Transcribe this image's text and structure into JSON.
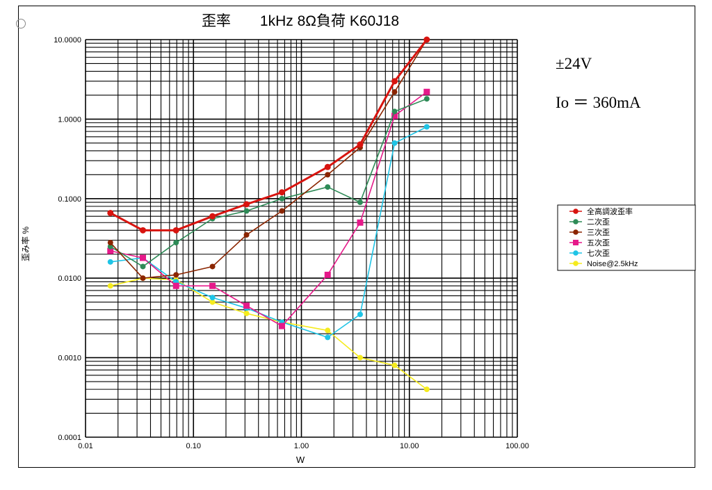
{
  "chart_data": {
    "type": "line",
    "title": "歪率　　1kHz 8Ω負荷  K60J18",
    "xlabel": "W",
    "ylabel": "歪み率 %",
    "xscale": "log",
    "yscale": "log",
    "xlim": [
      0.01,
      100
    ],
    "ylim": [
      0.0001,
      10
    ],
    "grid": true,
    "legend_position": "right",
    "xticks": [
      "0.01",
      "0.10",
      "1.00",
      "10.00",
      "100.00"
    ],
    "yticks": [
      "10.0000",
      "1.0000",
      "0.1000",
      "0.0100",
      "0.0010",
      "0.0001"
    ],
    "x": [
      0.017,
      0.034,
      0.069,
      0.15,
      0.31,
      0.66,
      1.75,
      3.5,
      7.3,
      14.5
    ],
    "series": [
      {
        "name": "全高調波歪率",
        "color": "#d8140f",
        "values": [
          0.066,
          0.04,
          0.04,
          0.06,
          0.085,
          0.12,
          0.25,
          0.48,
          3.0,
          10.0
        ]
      },
      {
        "name": "二次歪",
        "color": "#2e8b57",
        "values": [
          0.025,
          0.014,
          0.028,
          0.056,
          0.07,
          0.1,
          0.14,
          0.09,
          1.25,
          1.8
        ]
      },
      {
        "name": "三次歪",
        "color": "#8b2500",
        "values": [
          0.028,
          0.01,
          0.011,
          0.014,
          0.035,
          0.07,
          0.2,
          0.44,
          2.2,
          10.0
        ]
      },
      {
        "name": "五次歪",
        "color": "#e6198a",
        "values": [
          0.022,
          0.018,
          0.008,
          0.008,
          0.0045,
          0.0025,
          0.011,
          0.05,
          1.1,
          2.2
        ]
      },
      {
        "name": "七次歪",
        "color": "#1ec4e6",
        "values": [
          0.016,
          0.018,
          0.009,
          0.0057,
          0.0042,
          0.0028,
          0.0018,
          0.0035,
          0.5,
          0.8
        ]
      },
      {
        "name": "Noise@2.5kHz",
        "color": "#f5eb1e",
        "values": [
          0.008,
          0.01,
          0.0095,
          0.005,
          0.0036,
          0.0028,
          0.0022,
          0.001,
          0.0008,
          0.0004
        ]
      }
    ],
    "annotations": [
      "±24V",
      "Io ＝ 360mA"
    ]
  }
}
